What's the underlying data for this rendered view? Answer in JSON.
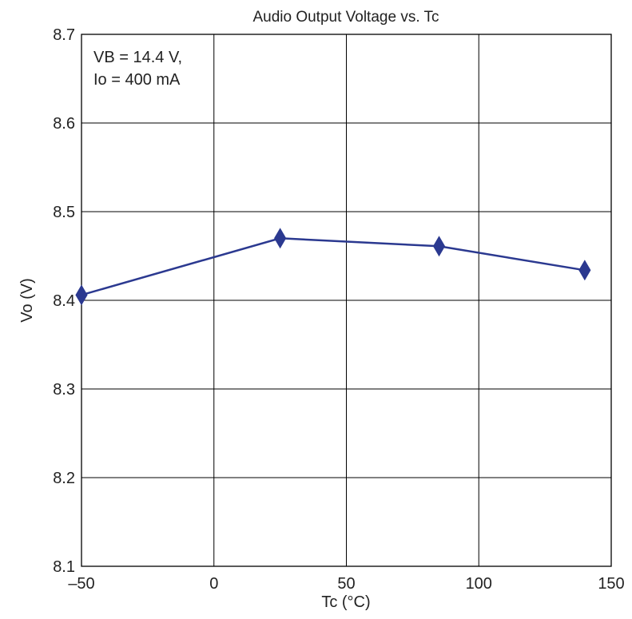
{
  "chart_data": {
    "type": "line",
    "title": "Audio Output Voltage vs. Tc",
    "xlabel": "Tc   (°C)",
    "ylabel": "Vo   (V)",
    "xlim": [
      -50,
      150
    ],
    "ylim": [
      8.1,
      8.7
    ],
    "x_ticks": [
      -50,
      0,
      50,
      100,
      150
    ],
    "x_tick_labels": [
      "–50",
      "0",
      "50",
      "100",
      "150"
    ],
    "y_ticks": [
      8.1,
      8.2,
      8.3,
      8.4,
      8.5,
      8.6,
      8.7
    ],
    "y_tick_labels": [
      "8.1",
      "8.2",
      "8.3",
      "8.4",
      "8.5",
      "8.6",
      "8.7"
    ],
    "grid": true,
    "annotation": [
      "VB = 14.4 V,",
      "Io = 400 mA"
    ],
    "series": [
      {
        "x": [
          -50,
          25,
          85,
          140
        ],
        "y": [
          8.406,
          8.47,
          8.461,
          8.434
        ],
        "color": "#2b3990",
        "marker": "diamond"
      }
    ]
  }
}
